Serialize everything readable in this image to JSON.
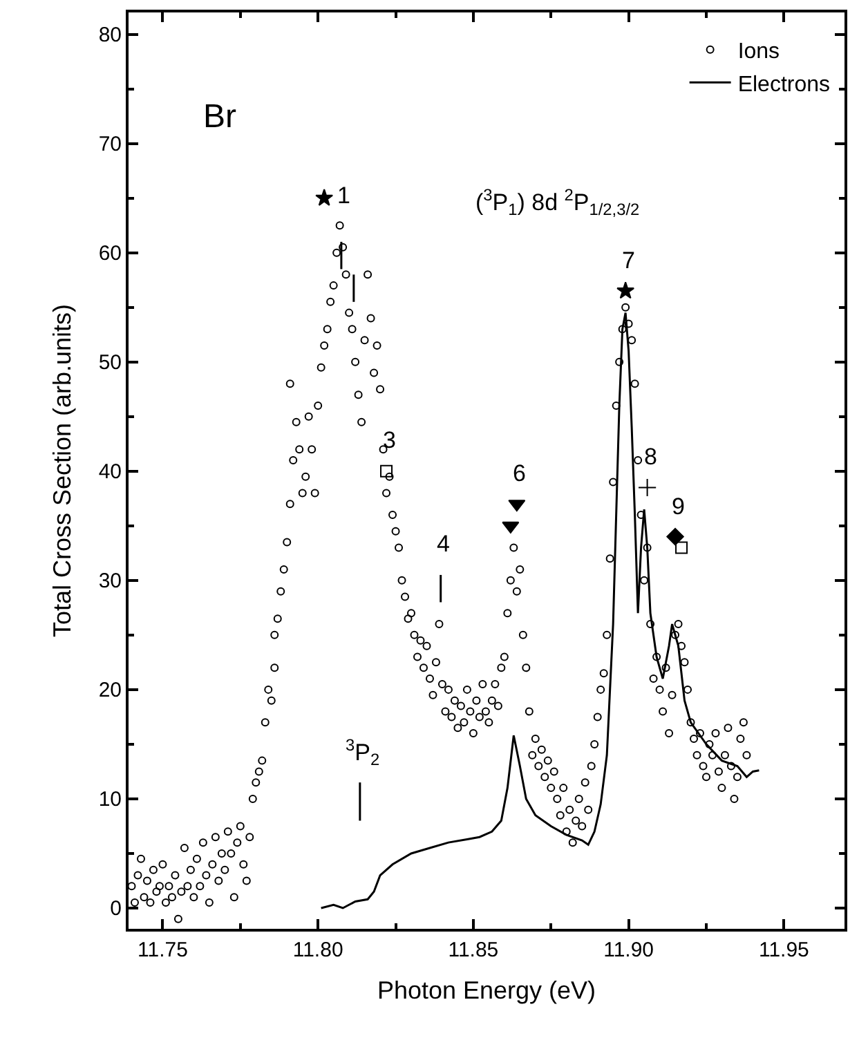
{
  "chart_data": {
    "type": "scatter",
    "xlabel": "Photon Energy (eV)",
    "ylabel": "Total Cross Section (arb.units)",
    "xlim": [
      11.739,
      11.9695
    ],
    "ylim": [
      -1.9,
      82
    ],
    "xticks": [
      11.75,
      {
        "value": 11.8,
        "label": "11.80"
      },
      11.85,
      {
        "value": 11.9,
        "label": "11.90"
      },
      11.95
    ],
    "yticks": [
      0,
      10,
      20,
      30,
      40,
      50,
      60,
      70,
      80
    ],
    "grid": false,
    "legend": "top right",
    "series": [
      {
        "name": "Ions",
        "marker": "circle",
        "color": "#000000",
        "x": [
          11.74,
          11.741,
          11.742,
          11.743,
          11.744,
          11.745,
          11.746,
          11.747,
          11.748,
          11.749,
          11.75,
          11.751,
          11.752,
          11.753,
          11.754,
          11.755,
          11.756,
          11.757,
          11.758,
          11.759,
          11.76,
          11.761,
          11.762,
          11.763,
          11.764,
          11.765,
          11.766,
          11.767,
          11.768,
          11.769,
          11.77,
          11.771,
          11.772,
          11.773,
          11.774,
          11.775,
          11.776,
          11.777,
          11.778,
          11.779,
          11.78,
          11.781,
          11.782,
          11.783,
          11.784,
          11.785,
          11.786,
          11.786,
          11.787,
          11.788,
          11.789,
          11.79,
          11.791,
          11.792,
          11.793,
          11.791,
          11.794,
          11.795,
          11.796,
          11.797,
          11.798,
          11.799,
          11.8,
          11.801,
          11.802,
          11.803,
          11.804,
          11.805,
          11.806,
          11.807,
          11.808,
          11.809,
          11.81,
          11.811,
          11.812,
          11.813,
          11.814,
          11.815,
          11.816,
          11.817,
          11.818,
          11.819,
          11.82,
          11.821,
          11.822,
          11.823,
          11.824,
          11.825,
          11.826,
          11.827,
          11.828,
          11.829,
          11.83,
          11.831,
          11.832,
          11.833,
          11.834,
          11.835,
          11.836,
          11.837,
          11.838,
          11.839,
          11.84,
          11.841,
          11.842,
          11.843,
          11.844,
          11.845,
          11.846,
          11.847,
          11.848,
          11.849,
          11.85,
          11.851,
          11.852,
          11.853,
          11.854,
          11.855,
          11.856,
          11.857,
          11.858,
          11.859,
          11.86,
          11.861,
          11.862,
          11.863,
          11.864,
          11.865,
          11.866,
          11.867,
          11.868,
          11.869,
          11.87,
          11.871,
          11.872,
          11.873,
          11.874,
          11.875,
          11.876,
          11.877,
          11.878,
          11.879,
          11.88,
          11.881,
          11.882,
          11.883,
          11.884,
          11.885,
          11.886,
          11.887,
          11.888,
          11.889,
          11.89,
          11.891,
          11.892,
          11.893,
          11.894,
          11.895,
          11.896,
          11.897,
          11.898,
          11.899,
          11.9,
          11.901,
          11.902,
          11.903,
          11.904,
          11.905,
          11.906,
          11.907,
          11.908,
          11.909,
          11.91,
          11.911,
          11.912,
          11.913,
          11.914,
          11.915,
          11.916,
          11.917,
          11.918,
          11.919,
          11.92,
          11.921,
          11.922,
          11.923,
          11.924,
          11.925,
          11.926,
          11.927,
          11.928,
          11.929,
          11.93,
          11.931,
          11.932,
          11.933,
          11.934,
          11.935,
          11.936,
          11.937,
          11.938
        ],
        "values": [
          2,
          0.5,
          3,
          4.5,
          1,
          2.5,
          0.5,
          3.5,
          1.5,
          2,
          4,
          0.5,
          2,
          1,
          3,
          -1,
          1.5,
          5.5,
          2,
          3.5,
          1,
          4.5,
          2,
          6,
          3,
          0.5,
          4,
          6.5,
          2.5,
          5,
          3.5,
          7,
          5,
          1,
          6,
          7.5,
          4,
          2.5,
          6.5,
          10,
          11.5,
          12.5,
          13.5,
          17,
          20,
          19,
          22,
          25,
          26.5,
          29,
          31,
          33.5,
          37,
          41,
          44.5,
          48,
          42,
          38,
          39.5,
          45,
          42,
          38,
          46,
          49.5,
          51.5,
          53,
          55.5,
          57,
          60,
          62.5,
          60.5,
          58,
          54.5,
          53,
          50,
          47,
          44.5,
          52,
          58,
          54,
          49,
          51.5,
          47.5,
          42,
          38,
          39.5,
          36,
          34.5,
          33,
          30,
          28.5,
          26.5,
          27,
          25,
          23,
          24.5,
          22,
          24,
          21,
          19.5,
          22.5,
          26,
          20.5,
          18,
          20,
          17.5,
          19,
          16.5,
          18.5,
          17,
          20,
          18,
          16,
          19,
          17.5,
          20.5,
          18,
          17,
          19,
          20.5,
          18.5,
          22,
          23,
          27,
          30,
          33,
          29,
          31,
          25,
          22,
          18,
          14,
          15.5,
          13,
          14.5,
          12,
          13.5,
          11,
          12.5,
          10,
          8.5,
          11,
          7,
          9,
          6,
          8,
          10,
          7.5,
          11.5,
          9,
          13,
          15,
          17.5,
          20,
          21.5,
          25,
          32,
          39,
          46,
          50,
          53,
          55,
          53.5,
          52,
          48,
          41,
          36,
          30,
          33,
          26,
          21,
          23,
          20,
          18,
          22,
          16,
          19.5,
          25,
          26,
          24,
          22.5,
          20,
          17,
          15.5,
          14,
          16,
          13,
          12,
          15,
          14,
          16,
          12.5,
          11,
          14,
          16.5,
          13,
          10,
          12,
          15.5,
          17,
          14
        ]
      },
      {
        "name": "Electrons",
        "type": "line",
        "marker": "none",
        "color": "#000000",
        "x": [
          11.801,
          11.805,
          11.808,
          11.812,
          11.816,
          11.818,
          11.82,
          11.824,
          11.83,
          11.836,
          11.842,
          11.848,
          11.852,
          11.856,
          11.859,
          11.861,
          11.863,
          11.865,
          11.867,
          11.87,
          11.875,
          11.88,
          11.885,
          11.887,
          11.889,
          11.891,
          11.893,
          11.895,
          11.896,
          11.897,
          11.898,
          11.899,
          11.9,
          11.901,
          11.902,
          11.903,
          11.904,
          11.905,
          11.906,
          11.907,
          11.909,
          11.911,
          11.913,
          11.914,
          11.916,
          11.918,
          11.92,
          11.925,
          11.93,
          11.935,
          11.938,
          11.94,
          11.942
        ],
        "values": [
          0,
          0.3,
          0,
          0.6,
          0.8,
          1.5,
          3,
          4,
          5,
          5.5,
          6,
          6.3,
          6.5,
          7,
          8,
          11,
          15.8,
          13,
          10,
          8.5,
          7.5,
          6.7,
          6.2,
          5.8,
          7,
          9.5,
          14,
          26,
          36,
          46,
          53,
          54.5,
          51,
          44,
          36,
          27,
          33,
          36.5,
          33,
          27,
          23,
          21,
          24,
          26,
          24,
          19,
          17,
          15,
          13.5,
          13,
          12,
          12.5,
          12.6
        ]
      },
      {
        "marker": "star",
        "color": "#000000",
        "x": [
          11.802,
          11.899
        ],
        "values": [
          65,
          56.5
        ]
      },
      {
        "marker": "square",
        "color": "#000000",
        "x": [
          11.822,
          11.917
        ],
        "values": [
          40,
          33
        ]
      },
      {
        "marker": "triangle",
        "color": "#000000",
        "x": [
          11.862,
          11.864
        ],
        "values": [
          35,
          37
        ]
      },
      {
        "marker": "cross",
        "color": "#000000",
        "x": [
          11.906
        ],
        "values": [
          38.5
        ]
      },
      {
        "marker": "diamond",
        "color": "#000000",
        "x": [
          11.915
        ],
        "values": [
          34
        ]
      },
      {
        "type": "line",
        "marker": "none",
        "color": "#000000",
        "x": [
          11.8075,
          11.8075,
          null,
          11.8115,
          11.8115,
          null,
          11.8395,
          11.8395,
          null,
          11.8135,
          11.8135
        ],
        "values": [
          58.5,
          61,
          null,
          55.5,
          58,
          null,
          28,
          30.5,
          null,
          8,
          11.5
        ]
      }
    ],
    "annotations": [
      "Br",
      {
        "text": "1",
        "x": 11.802,
        "y": 65
      },
      {
        "text": "3",
        "x": 11.822,
        "y": 40
      },
      {
        "text": "4",
        "x": 11.8395,
        "y": 30.5
      },
      {
        "text": "6",
        "x": 11.864,
        "y": 37
      },
      {
        "text": "7",
        "x": 11.899,
        "y": 56.5
      },
      {
        "text": "8",
        "x": 11.906,
        "y": 38.5
      },
      {
        "text": "9",
        "x": 11.915,
        "y": 34
      },
      {
        "text": "$^{3}$P$_{2}$",
        "x": 11.8135,
        "y": 11.5
      },
      "($^{3}$P$_{1}$) 8d $^{2}$P$_{1/2,3/2}$"
    ]
  }
}
